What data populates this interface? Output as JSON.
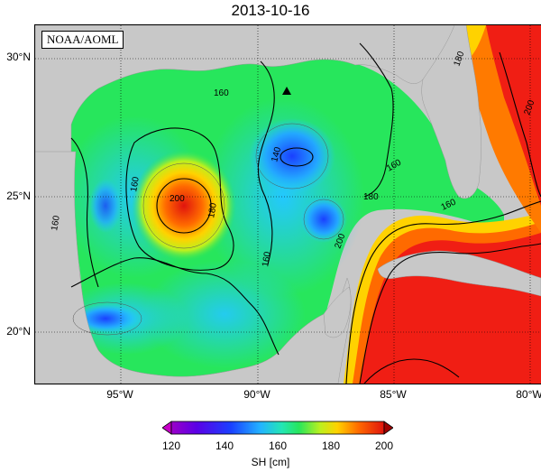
{
  "title": "2013-10-16",
  "credit": "NOAA/AOML",
  "lat_labels": [
    "30°N",
    "25°N",
    "20°N"
  ],
  "lon_labels": [
    "95°W",
    "90°W",
    "85°W",
    "80°W"
  ],
  "colorbar": {
    "ticks": [
      "120",
      "140",
      "160",
      "180",
      "200"
    ],
    "label": "SH [cm]"
  },
  "contour_labels": [
    "160",
    "160",
    "160",
    "140",
    "160",
    "200",
    "180",
    "160",
    "180",
    "160",
    "180",
    "200",
    "200"
  ],
  "colors": {
    "land": "#c8c8c8",
    "c140": "#1a4cff",
    "c150": "#23c8ff",
    "c160": "#27e65c",
    "c170": "#bcf01e",
    "c180": "#ffd200",
    "c190": "#ff7a00",
    "c200": "#f01e14"
  }
}
